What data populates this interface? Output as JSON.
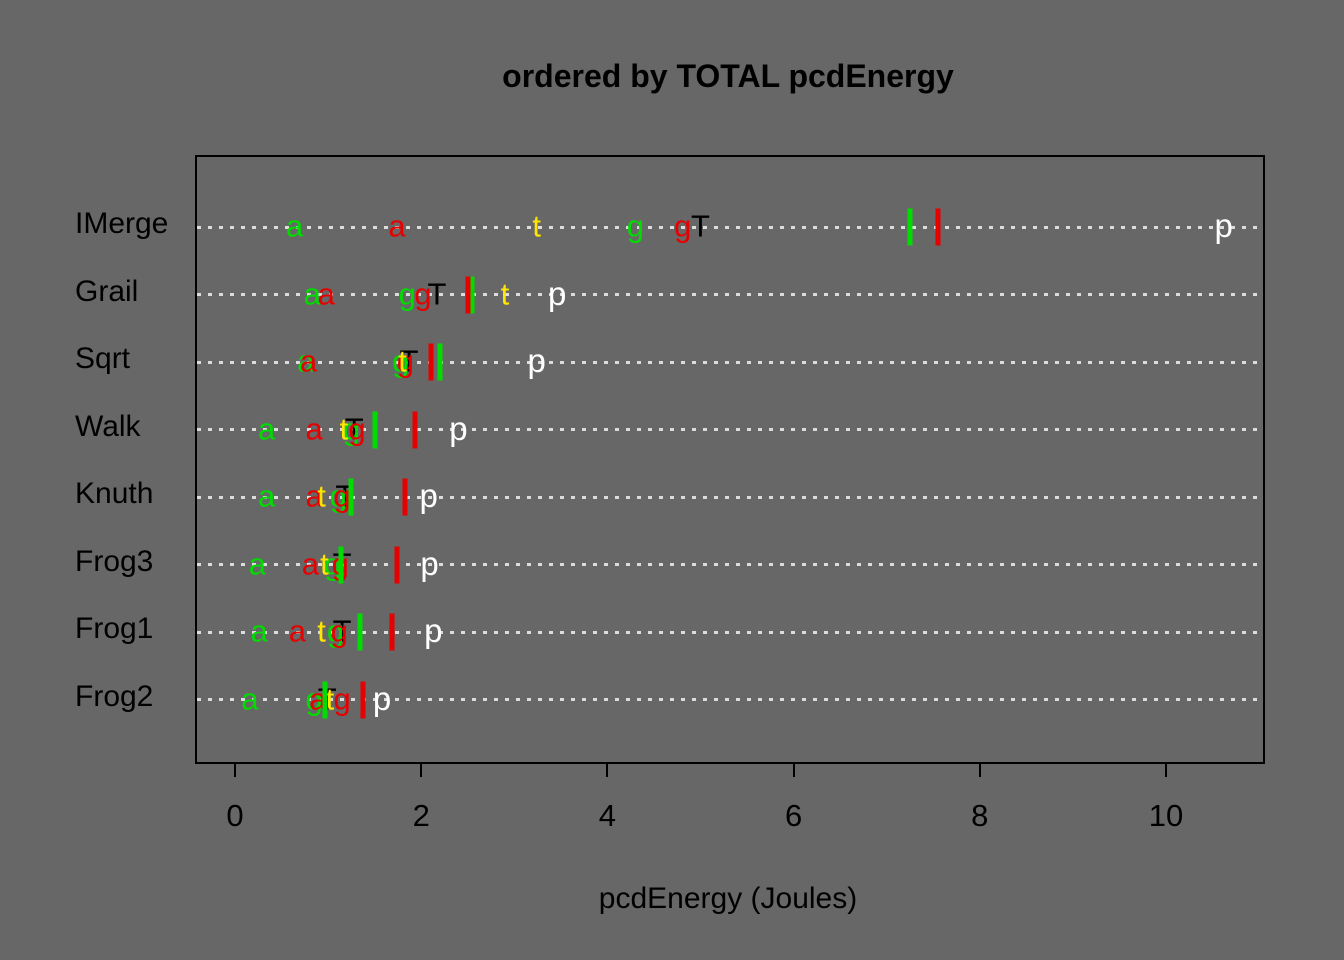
{
  "title": "ordered by TOTAL pcdEnergy",
  "chart_data": {
    "type": "scatter",
    "title": "ordered by TOTAL pcdEnergy",
    "xlabel": "pcdEnergy (Joules)",
    "categories": [
      "IMerge",
      "Grail",
      "Sqrt",
      "Walk",
      "Knuth",
      "Frog3",
      "Frog1",
      "Frog2"
    ],
    "xticks": [
      0,
      2,
      4,
      6,
      8,
      10
    ],
    "xlim": [
      -0.41,
      11.05
    ],
    "grid": "horizontal dotted line per category",
    "legend_position": "none",
    "layout": {
      "background_color": "#676767",
      "grid_dot_color": "#dcdcdc",
      "frame_color": "#000000",
      "text_color": "#000000"
    },
    "note": "dot chart; each marker glyph is a series, values in Joules, rows ordered top to bottom as in categories",
    "series": [
      {
        "name": "T-black",
        "marker": "T",
        "color": "#000000",
        "values": [
          5.0,
          2.17,
          1.87,
          1.28,
          1.18,
          1.15,
          1.15,
          0.99
        ]
      },
      {
        "name": "g-green",
        "marker": "g",
        "color": "#00dc00",
        "values": [
          4.3,
          1.85,
          1.78,
          1.25,
          1.11,
          1.05,
          1.08,
          0.85
        ]
      },
      {
        "name": "g-red",
        "marker": "g",
        "color": "#e60000",
        "values": [
          4.81,
          2.02,
          1.83,
          1.31,
          1.15,
          1.13,
          1.12,
          1.15
        ]
      },
      {
        "name": "a-green",
        "marker": "a",
        "color": "#00dc00",
        "values": [
          0.64,
          0.83,
          0.76,
          0.34,
          0.34,
          0.24,
          0.26,
          0.16
        ]
      },
      {
        "name": "a-red",
        "marker": "a",
        "color": "#e60000",
        "values": [
          1.74,
          0.98,
          0.79,
          0.85,
          0.85,
          0.81,
          0.67,
          0.89
        ]
      },
      {
        "name": "t-yellow",
        "marker": "t",
        "color": "#ffe600",
        "values": [
          3.24,
          2.9,
          1.8,
          1.17,
          0.93,
          0.96,
          0.93,
          1.02
        ]
      },
      {
        "name": "bar-green",
        "marker": "|",
        "color": "#00dc00",
        "values": [
          7.25,
          2.55,
          2.2,
          1.5,
          1.25,
          1.14,
          1.34,
          0.97
        ]
      },
      {
        "name": "bar-red",
        "marker": "|",
        "color": "#e60000",
        "values": [
          7.55,
          2.5,
          2.11,
          1.93,
          1.83,
          1.74,
          1.69,
          1.38
        ]
      },
      {
        "name": "p-white",
        "marker": "p",
        "color": "#ffffff",
        "values": [
          10.62,
          3.46,
          3.24,
          2.4,
          2.08,
          2.09,
          2.13,
          1.58
        ]
      }
    ]
  }
}
